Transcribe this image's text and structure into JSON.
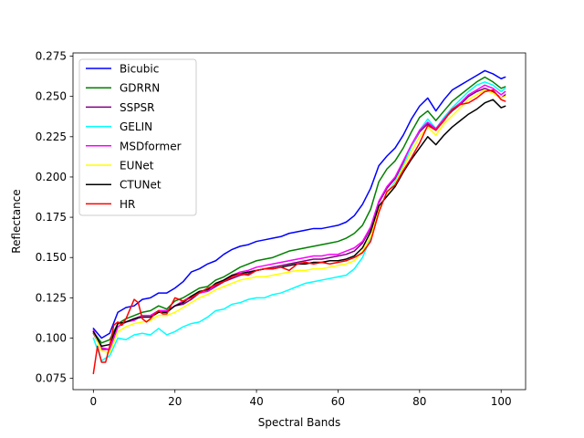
{
  "chart_data": {
    "type": "line",
    "title": "",
    "xlabel": "Spectral Bands",
    "ylabel": "Reflectance",
    "xlim": [
      -5,
      106
    ],
    "ylim": [
      0.068,
      0.277
    ],
    "x_ticks": [
      0,
      20,
      40,
      60,
      80,
      100
    ],
    "y_ticks": [
      0.075,
      0.1,
      0.125,
      0.15,
      0.175,
      0.2,
      0.225,
      0.25,
      0.275
    ],
    "x_tick_labels": [
      "0",
      "20",
      "40",
      "60",
      "80",
      "100"
    ],
    "y_tick_labels": [
      "0.075",
      "0.100",
      "0.125",
      "0.150",
      "0.175",
      "0.200",
      "0.225",
      "0.250",
      "0.275"
    ],
    "grid": false,
    "legend_position": "upper-left",
    "series": [
      {
        "name": "Bicubic",
        "color": "#0000ff",
        "x": [
          0,
          2,
          4,
          6,
          8,
          10,
          12,
          14,
          16,
          18,
          20,
          22,
          24,
          26,
          28,
          30,
          32,
          34,
          36,
          38,
          40,
          42,
          44,
          46,
          48,
          50,
          52,
          54,
          56,
          58,
          60,
          62,
          64,
          66,
          68,
          70,
          72,
          74,
          76,
          78,
          80,
          82,
          84,
          86,
          88,
          90,
          92,
          94,
          96,
          98,
          100,
          101
        ],
        "y": [
          0.106,
          0.1,
          0.103,
          0.116,
          0.119,
          0.12,
          0.124,
          0.125,
          0.128,
          0.128,
          0.131,
          0.135,
          0.141,
          0.143,
          0.146,
          0.148,
          0.152,
          0.155,
          0.157,
          0.158,
          0.16,
          0.161,
          0.162,
          0.163,
          0.165,
          0.166,
          0.167,
          0.168,
          0.168,
          0.169,
          0.17,
          0.172,
          0.176,
          0.183,
          0.193,
          0.207,
          0.213,
          0.218,
          0.226,
          0.236,
          0.244,
          0.249,
          0.241,
          0.248,
          0.254,
          0.257,
          0.26,
          0.263,
          0.266,
          0.264,
          0.261,
          0.262
        ]
      },
      {
        "name": "GDRRN",
        "color": "#008000",
        "x": [
          0,
          2,
          4,
          6,
          8,
          10,
          12,
          14,
          16,
          18,
          20,
          22,
          24,
          26,
          28,
          30,
          32,
          34,
          36,
          38,
          40,
          42,
          44,
          46,
          48,
          50,
          52,
          54,
          56,
          58,
          60,
          62,
          64,
          66,
          68,
          70,
          72,
          74,
          76,
          78,
          80,
          82,
          84,
          86,
          88,
          90,
          92,
          94,
          96,
          98,
          100,
          101
        ],
        "y": [
          0.104,
          0.097,
          0.099,
          0.109,
          0.112,
          0.114,
          0.116,
          0.117,
          0.12,
          0.118,
          0.123,
          0.125,
          0.128,
          0.131,
          0.132,
          0.136,
          0.138,
          0.141,
          0.144,
          0.146,
          0.148,
          0.149,
          0.15,
          0.152,
          0.154,
          0.155,
          0.156,
          0.157,
          0.158,
          0.159,
          0.16,
          0.162,
          0.165,
          0.17,
          0.18,
          0.197,
          0.205,
          0.21,
          0.218,
          0.228,
          0.237,
          0.241,
          0.235,
          0.241,
          0.247,
          0.251,
          0.255,
          0.259,
          0.262,
          0.259,
          0.255,
          0.256
        ]
      },
      {
        "name": "SSPSR",
        "color": "#800080",
        "x": [
          0,
          2,
          4,
          6,
          8,
          10,
          12,
          14,
          16,
          18,
          20,
          22,
          24,
          26,
          28,
          30,
          32,
          34,
          36,
          38,
          40,
          42,
          44,
          46,
          48,
          50,
          52,
          54,
          56,
          58,
          60,
          62,
          64,
          66,
          68,
          70,
          72,
          74,
          76,
          78,
          80,
          82,
          84,
          86,
          88,
          90,
          92,
          94,
          96,
          98,
          100,
          101
        ],
        "y": [
          0.103,
          0.093,
          0.093,
          0.107,
          0.11,
          0.112,
          0.114,
          0.114,
          0.117,
          0.117,
          0.12,
          0.121,
          0.124,
          0.128,
          0.129,
          0.132,
          0.135,
          0.137,
          0.139,
          0.14,
          0.142,
          0.143,
          0.144,
          0.145,
          0.146,
          0.147,
          0.148,
          0.149,
          0.149,
          0.15,
          0.151,
          0.152,
          0.154,
          0.159,
          0.168,
          0.184,
          0.193,
          0.199,
          0.209,
          0.219,
          0.228,
          0.233,
          0.229,
          0.236,
          0.241,
          0.245,
          0.25,
          0.253,
          0.255,
          0.253,
          0.249,
          0.251
        ]
      },
      {
        "name": "GELIN",
        "color": "#00ffff",
        "x": [
          0,
          2,
          4,
          6,
          8,
          10,
          12,
          14,
          16,
          18,
          20,
          22,
          24,
          26,
          28,
          30,
          32,
          34,
          36,
          38,
          40,
          42,
          44,
          46,
          48,
          50,
          52,
          54,
          56,
          58,
          60,
          62,
          64,
          66,
          68,
          70,
          72,
          74,
          76,
          78,
          80,
          82,
          84,
          86,
          88,
          90,
          92,
          94,
          96,
          98,
          100,
          101
        ],
        "y": [
          0.1,
          0.086,
          0.089,
          0.1,
          0.099,
          0.102,
          0.103,
          0.102,
          0.106,
          0.102,
          0.104,
          0.107,
          0.109,
          0.11,
          0.113,
          0.117,
          0.118,
          0.121,
          0.122,
          0.124,
          0.125,
          0.125,
          0.127,
          0.128,
          0.13,
          0.132,
          0.134,
          0.135,
          0.136,
          0.137,
          0.138,
          0.139,
          0.143,
          0.15,
          0.162,
          0.179,
          0.19,
          0.197,
          0.207,
          0.219,
          0.229,
          0.236,
          0.23,
          0.237,
          0.243,
          0.248,
          0.253,
          0.257,
          0.259,
          0.257,
          0.253,
          0.255
        ]
      },
      {
        "name": "MSDformer",
        "color": "#ff00ff",
        "x": [
          0,
          2,
          4,
          6,
          8,
          10,
          12,
          14,
          16,
          18,
          20,
          22,
          24,
          26,
          28,
          30,
          32,
          34,
          36,
          38,
          40,
          42,
          44,
          46,
          48,
          50,
          52,
          54,
          56,
          58,
          60,
          62,
          64,
          66,
          68,
          70,
          72,
          74,
          76,
          78,
          80,
          82,
          84,
          86,
          88,
          90,
          92,
          94,
          96,
          98,
          100,
          101
        ],
        "y": [
          0.105,
          0.094,
          0.093,
          0.107,
          0.11,
          0.111,
          0.114,
          0.114,
          0.117,
          0.117,
          0.12,
          0.123,
          0.126,
          0.128,
          0.129,
          0.133,
          0.136,
          0.139,
          0.141,
          0.142,
          0.144,
          0.145,
          0.146,
          0.147,
          0.148,
          0.149,
          0.15,
          0.151,
          0.151,
          0.152,
          0.152,
          0.154,
          0.156,
          0.16,
          0.169,
          0.185,
          0.194,
          0.2,
          0.21,
          0.22,
          0.229,
          0.234,
          0.23,
          0.236,
          0.242,
          0.246,
          0.251,
          0.254,
          0.257,
          0.255,
          0.251,
          0.253
        ]
      },
      {
        "name": "EUNet",
        "color": "#ffff00",
        "x": [
          0,
          2,
          4,
          6,
          8,
          10,
          12,
          14,
          16,
          18,
          20,
          22,
          24,
          26,
          28,
          30,
          32,
          34,
          36,
          38,
          40,
          42,
          44,
          46,
          48,
          50,
          52,
          54,
          56,
          58,
          60,
          62,
          64,
          66,
          68,
          70,
          72,
          74,
          76,
          78,
          80,
          82,
          84,
          86,
          88,
          90,
          92,
          94,
          96,
          98,
          100,
          101
        ],
        "y": [
          0.104,
          0.092,
          0.091,
          0.104,
          0.107,
          0.109,
          0.11,
          0.111,
          0.114,
          0.114,
          0.116,
          0.119,
          0.122,
          0.125,
          0.127,
          0.13,
          0.132,
          0.134,
          0.136,
          0.137,
          0.138,
          0.138,
          0.139,
          0.14,
          0.141,
          0.142,
          0.142,
          0.143,
          0.143,
          0.144,
          0.145,
          0.146,
          0.148,
          0.154,
          0.163,
          0.18,
          0.19,
          0.196,
          0.206,
          0.216,
          0.225,
          0.231,
          0.226,
          0.233,
          0.238,
          0.243,
          0.248,
          0.251,
          0.254,
          0.252,
          0.249,
          0.25
        ]
      },
      {
        "name": "CTUNet",
        "color": "#000000",
        "x": [
          0,
          2,
          4,
          6,
          8,
          10,
          12,
          14,
          16,
          18,
          20,
          22,
          24,
          26,
          28,
          30,
          32,
          34,
          36,
          38,
          40,
          42,
          44,
          46,
          48,
          50,
          52,
          54,
          56,
          58,
          60,
          62,
          64,
          66,
          68,
          70,
          72,
          74,
          76,
          78,
          80,
          82,
          84,
          86,
          88,
          90,
          92,
          94,
          96,
          98,
          100,
          101
        ],
        "y": [
          0.104,
          0.095,
          0.096,
          0.109,
          0.11,
          0.112,
          0.113,
          0.113,
          0.116,
          0.116,
          0.12,
          0.122,
          0.126,
          0.129,
          0.13,
          0.134,
          0.136,
          0.139,
          0.14,
          0.141,
          0.142,
          0.143,
          0.143,
          0.144,
          0.145,
          0.146,
          0.146,
          0.147,
          0.147,
          0.148,
          0.148,
          0.149,
          0.151,
          0.156,
          0.166,
          0.182,
          0.188,
          0.194,
          0.203,
          0.211,
          0.218,
          0.225,
          0.22,
          0.226,
          0.231,
          0.235,
          0.239,
          0.242,
          0.246,
          0.248,
          0.243,
          0.244
        ]
      },
      {
        "name": "HR",
        "color": "#ff0000",
        "x": [
          0,
          1,
          2,
          3,
          4,
          5,
          6,
          7,
          8,
          9,
          10,
          11,
          12,
          13,
          14,
          15,
          16,
          17,
          18,
          19,
          20,
          21,
          22,
          24,
          26,
          28,
          30,
          32,
          34,
          36,
          38,
          40,
          42,
          44,
          46,
          48,
          50,
          52,
          54,
          56,
          58,
          60,
          62,
          64,
          66,
          68,
          70,
          72,
          74,
          76,
          78,
          80,
          82,
          84,
          86,
          88,
          90,
          92,
          94,
          96,
          98,
          100,
          101
        ],
        "y": [
          0.078,
          0.095,
          0.085,
          0.085,
          0.095,
          0.108,
          0.11,
          0.108,
          0.112,
          0.118,
          0.124,
          0.122,
          0.112,
          0.11,
          0.112,
          0.115,
          0.117,
          0.115,
          0.115,
          0.12,
          0.125,
          0.124,
          0.123,
          0.125,
          0.128,
          0.131,
          0.133,
          0.135,
          0.138,
          0.14,
          0.139,
          0.142,
          0.143,
          0.143,
          0.144,
          0.142,
          0.146,
          0.147,
          0.146,
          0.147,
          0.146,
          0.147,
          0.148,
          0.15,
          0.153,
          0.16,
          0.178,
          0.191,
          0.195,
          0.204,
          0.212,
          0.221,
          0.232,
          0.229,
          0.235,
          0.242,
          0.245,
          0.246,
          0.249,
          0.253,
          0.254,
          0.248,
          0.247
        ]
      }
    ]
  }
}
